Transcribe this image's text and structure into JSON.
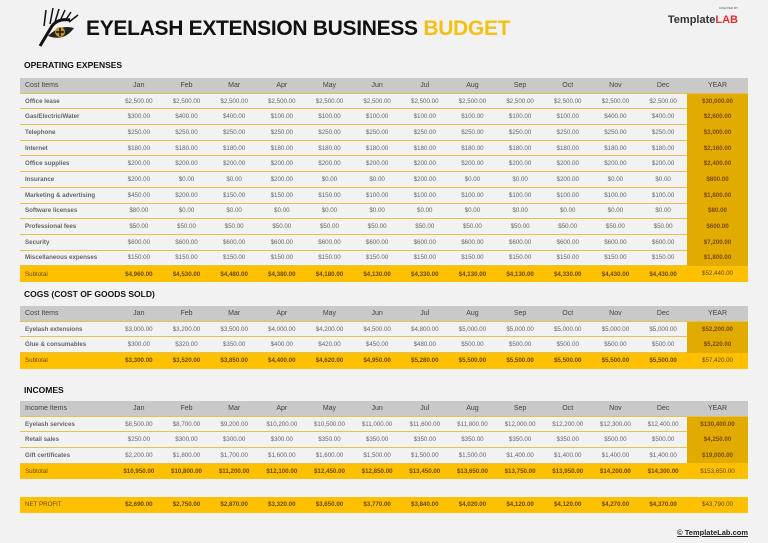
{
  "header": {
    "title_main": "EYELASH EXTENSION BUSINESS",
    "title_accent": "BUDGET",
    "brand_small": "CREATED BY",
    "brand_name_a": "Template",
    "brand_name_b": "LAB"
  },
  "months": [
    "Jan",
    "Feb",
    "Mar",
    "Apr",
    "May",
    "Jun",
    "Jul",
    "Aug",
    "Sep",
    "Oct",
    "Nov",
    "Dec"
  ],
  "year_label": "YEAR",
  "operating": {
    "title": "OPERATING EXPENSES",
    "first_header": "Cost Items",
    "rows": [
      {
        "label": "Office lease",
        "values": [
          "$2,500.00",
          "$2,500.00",
          "$2,500.00",
          "$2,500.00",
          "$2,500.00",
          "$2,500.00",
          "$2,500.00",
          "$2,500.00",
          "$2,500.00",
          "$2,500.00",
          "$2,500.00",
          "$2,500.00"
        ],
        "year": "$30,000.00"
      },
      {
        "label": "Gas/Electric/Water",
        "values": [
          "$300.00",
          "$400.00",
          "$400.00",
          "$100.00",
          "$100.00",
          "$100.00",
          "$100.00",
          "$100.00",
          "$100.00",
          "$100.00",
          "$400.00",
          "$400.00"
        ],
        "year": "$2,600.00"
      },
      {
        "label": "Telephone",
        "values": [
          "$250.00",
          "$250.00",
          "$250.00",
          "$250.00",
          "$250.00",
          "$250.00",
          "$250.00",
          "$250.00",
          "$250.00",
          "$250.00",
          "$250.00",
          "$250.00"
        ],
        "year": "$3,000.00"
      },
      {
        "label": "Internet",
        "values": [
          "$180.00",
          "$180.00",
          "$180.00",
          "$180.00",
          "$180.00",
          "$180.00",
          "$180.00",
          "$180.00",
          "$180.00",
          "$180.00",
          "$180.00",
          "$180.00"
        ],
        "year": "$2,160.00"
      },
      {
        "label": "Office supplies",
        "values": [
          "$200.00",
          "$200.00",
          "$200.00",
          "$200.00",
          "$200.00",
          "$200.00",
          "$200.00",
          "$200.00",
          "$200.00",
          "$200.00",
          "$200.00",
          "$200.00"
        ],
        "year": "$2,400.00"
      },
      {
        "label": "Insurance",
        "values": [
          "$200.00",
          "$0.00",
          "$0.00",
          "$200.00",
          "$0.00",
          "$0.00",
          "$200.00",
          "$0.00",
          "$0.00",
          "$200.00",
          "$0.00",
          "$0.00"
        ],
        "year": "$800.00"
      },
      {
        "label": "Marketing & advertising",
        "values": [
          "$450.00",
          "$200.00",
          "$150.00",
          "$150.00",
          "$150.00",
          "$100.00",
          "$100.00",
          "$100.00",
          "$100.00",
          "$100.00",
          "$100.00",
          "$100.00"
        ],
        "year": "$1,800.00"
      },
      {
        "label": "Software licenses",
        "values": [
          "$80.00",
          "$0.00",
          "$0.00",
          "$0.00",
          "$0.00",
          "$0.00",
          "$0.00",
          "$0.00",
          "$0.00",
          "$0.00",
          "$0.00",
          "$0.00"
        ],
        "year": "$80.00"
      },
      {
        "label": "Professional fees",
        "values": [
          "$50.00",
          "$50.00",
          "$50.00",
          "$50.00",
          "$50.00",
          "$50.00",
          "$50.00",
          "$50.00",
          "$50.00",
          "$50.00",
          "$50.00",
          "$50.00"
        ],
        "year": "$600.00"
      },
      {
        "label": "Security",
        "values": [
          "$600.00",
          "$600.00",
          "$600.00",
          "$600.00",
          "$600.00",
          "$600.00",
          "$600.00",
          "$600.00",
          "$600.00",
          "$600.00",
          "$600.00",
          "$600.00"
        ],
        "year": "$7,200.00"
      },
      {
        "label": "Miscellaneous expenses",
        "values": [
          "$150.00",
          "$150.00",
          "$150.00",
          "$150.00",
          "$150.00",
          "$150.00",
          "$150.00",
          "$150.00",
          "$150.00",
          "$150.00",
          "$150.00",
          "$150.00"
        ],
        "year": "$1,800.00"
      }
    ],
    "subtotal": {
      "label": "Subtotal",
      "values": [
        "$4,960.00",
        "$4,530.00",
        "$4,480.00",
        "$4,380.00",
        "$4,180.00",
        "$4,130.00",
        "$4,330.00",
        "$4,130.00",
        "$4,130.00",
        "$4,330.00",
        "$4,430.00",
        "$4,430.00"
      ],
      "year": "$52,440.00"
    }
  },
  "cogs": {
    "title": "COGS (COST OF GOODS SOLD)",
    "first_header": "Cost Items",
    "rows": [
      {
        "label": "Eyelash extensions",
        "values": [
          "$3,000.00",
          "$3,200.00",
          "$3,500.00",
          "$4,000.00",
          "$4,200.00",
          "$4,500.00",
          "$4,800.00",
          "$5,000.00",
          "$5,000.00",
          "$5,000.00",
          "$5,000.00",
          "$5,000.00"
        ],
        "year": "$52,200.00"
      },
      {
        "label": "Glue & consumables",
        "values": [
          "$300.00",
          "$320.00",
          "$350.00",
          "$400.00",
          "$420.00",
          "$450.00",
          "$480.00",
          "$500.00",
          "$500.00",
          "$500.00",
          "$500.00",
          "$500.00"
        ],
        "year": "$5,220.00"
      }
    ],
    "subtotal": {
      "label": "Subtotal",
      "values": [
        "$3,300.00",
        "$3,520.00",
        "$3,850.00",
        "$4,400.00",
        "$4,620.00",
        "$4,950.00",
        "$5,280.00",
        "$5,500.00",
        "$5,500.00",
        "$5,500.00",
        "$5,500.00",
        "$5,500.00"
      ],
      "year": "$57,420.00"
    }
  },
  "incomes": {
    "title": "INCOMES",
    "first_header": "Income Items",
    "rows": [
      {
        "label": "Eyelash services",
        "values": [
          "$8,500.00",
          "$8,700.00",
          "$9,200.00",
          "$10,200.00",
          "$10,500.00",
          "$11,000.00",
          "$11,600.00",
          "$11,800.00",
          "$12,000.00",
          "$12,200.00",
          "$12,300.00",
          "$12,400.00"
        ],
        "year": "$130,400.00"
      },
      {
        "label": "Retail sales",
        "values": [
          "$250.00",
          "$300.00",
          "$300.00",
          "$300.00",
          "$350.00",
          "$350.00",
          "$350.00",
          "$350.00",
          "$350.00",
          "$350.00",
          "$500.00",
          "$500.00"
        ],
        "year": "$4,250.00"
      },
      {
        "label": "Gift certificates",
        "values": [
          "$2,200.00",
          "$1,800.00",
          "$1,700.00",
          "$1,600.00",
          "$1,600.00",
          "$1,500.00",
          "$1,500.00",
          "$1,500.00",
          "$1,400.00",
          "$1,400.00",
          "$1,400.00",
          "$1,400.00"
        ],
        "year": "$19,000.00"
      }
    ],
    "subtotal": {
      "label": "Subtotal",
      "values": [
        "$10,950.00",
        "$10,800.00",
        "$11,200.00",
        "$12,100.00",
        "$12,450.00",
        "$12,850.00",
        "$13,450.00",
        "$13,650.00",
        "$13,750.00",
        "$13,950.00",
        "$14,200.00",
        "$14,300.00"
      ],
      "year": "$153,650.00"
    }
  },
  "net_profit": {
    "label": "NET PROFIT",
    "values": [
      "$2,690.00",
      "$2,750.00",
      "$2,870.00",
      "$3,320.00",
      "$3,650.00",
      "$3,770.00",
      "$3,840.00",
      "$4,020.00",
      "$4,120.00",
      "$4,120.00",
      "$4,270.00",
      "$4,370.00"
    ],
    "year": "$43,790.00"
  },
  "footer": "© TemplateLab.com"
}
